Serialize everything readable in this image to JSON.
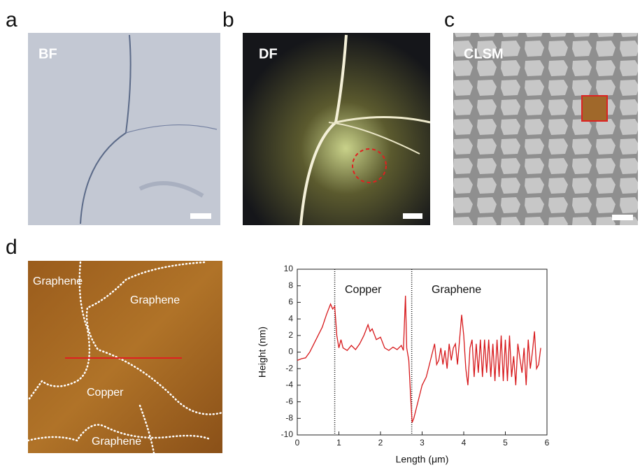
{
  "panels": [
    {
      "letter": "a",
      "label": "BF"
    },
    {
      "letter": "b",
      "label": "DF"
    },
    {
      "letter": "c",
      "label": "CLSM"
    },
    {
      "letter": "d",
      "labels": [
        "Graphene",
        "Graphene",
        "Copper",
        "Graphene"
      ]
    }
  ],
  "chart_data": {
    "type": "line",
    "color": "#d7191c",
    "x": [
      0,
      0.1,
      0.2,
      0.3,
      0.4,
      0.5,
      0.6,
      0.7,
      0.8,
      0.85,
      0.9,
      0.95,
      1.0,
      1.05,
      1.1,
      1.2,
      1.3,
      1.4,
      1.5,
      1.6,
      1.7,
      1.75,
      1.8,
      1.9,
      2.0,
      2.1,
      2.2,
      2.3,
      2.4,
      2.5,
      2.55,
      2.6,
      2.63,
      2.68,
      2.72,
      2.76,
      2.8,
      2.9,
      3.0,
      3.1,
      3.2,
      3.3,
      3.35,
      3.4,
      3.45,
      3.5,
      3.55,
      3.6,
      3.65,
      3.7,
      3.75,
      3.8,
      3.85,
      3.9,
      3.95,
      4.0,
      4.05,
      4.1,
      4.15,
      4.2,
      4.25,
      4.3,
      4.35,
      4.4,
      4.45,
      4.5,
      4.55,
      4.6,
      4.65,
      4.7,
      4.75,
      4.8,
      4.85,
      4.9,
      4.95,
      5.0,
      5.05,
      5.1,
      5.15,
      5.2,
      5.25,
      5.3,
      5.4,
      5.45,
      5.5,
      5.55,
      5.6,
      5.65,
      5.7,
      5.75,
      5.8,
      5.85
    ],
    "values": [
      -1,
      -0.8,
      -0.7,
      0,
      1,
      2,
      3,
      4.5,
      5.8,
      5.2,
      5.5,
      2,
      0.5,
      1.5,
      0.5,
      0.2,
      0.8,
      0.3,
      1,
      2,
      3.3,
      2.5,
      2.8,
      1.5,
      1.8,
      0.5,
      0.2,
      0.6,
      0.3,
      0.8,
      0.2,
      6.8,
      0.5,
      -1,
      -5,
      -8.5,
      -8,
      -6,
      -4,
      -3,
      -1,
      1,
      -1.5,
      -1,
      0.5,
      -1.5,
      0.2,
      -2,
      1,
      -1,
      0.5,
      1,
      -1.5,
      1.5,
      4.5,
      2,
      -2,
      -4,
      0.5,
      1.5,
      -3,
      1,
      -2.5,
      1.5,
      -3,
      1.5,
      -2.5,
      1.5,
      -3,
      1,
      -3.5,
      1.5,
      -3,
      2,
      -3.5,
      1.5,
      -3.5,
      2,
      -3,
      -0.5,
      -4,
      1,
      -2.5,
      0.5,
      -4,
      1.5,
      -2,
      0,
      2.5,
      -2,
      -1.5,
      0.5
    ],
    "xlim": [
      0,
      6
    ],
    "ylim": [
      -10,
      10
    ],
    "xticks": [
      0,
      1,
      2,
      3,
      4,
      5,
      6
    ],
    "yticks": [
      -10,
      -8,
      -6,
      -4,
      -2,
      0,
      2,
      4,
      6,
      8,
      10
    ],
    "xlabel": "Length (μm)",
    "ylabel": "Height (nm)",
    "vlines": [
      0.9,
      2.75
    ],
    "annotations": [
      "Copper",
      "Graphene"
    ]
  }
}
